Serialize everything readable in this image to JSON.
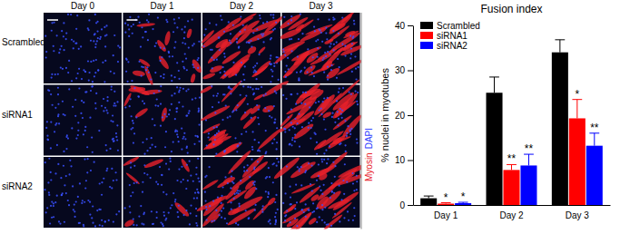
{
  "chart_data": {
    "type": "bar",
    "title": "Fusion index",
    "y_label": "% nuclei in myotubes",
    "categories": [
      "Day 1",
      "Day 2",
      "Day 3"
    ],
    "series": [
      {
        "name": "Scrambled",
        "color": "#000000",
        "values": [
          1.5,
          25,
          34
        ],
        "errors": [
          0.5,
          3.5,
          2.8
        ]
      },
      {
        "name": "siRNA1",
        "color": "#ff0000",
        "values": [
          0.3,
          7.8,
          19.3
        ],
        "errors": [
          0.2,
          1.2,
          4.2
        ],
        "significance": [
          "*",
          "**",
          "*"
        ]
      },
      {
        "name": "siRNA2",
        "color": "#0000ff",
        "values": [
          0.4,
          8.8,
          13.2
        ],
        "errors": [
          0.2,
          2.5,
          2.8
        ],
        "significance": [
          "*",
          "**",
          "**"
        ]
      }
    ],
    "ylim": [
      0,
      40
    ],
    "yticks": [
      0,
      10,
      20,
      30,
      40
    ],
    "grid": false,
    "legend": "upper left"
  },
  "figure_panel": {
    "columns": [
      "Day 0",
      "Day 1",
      "Day 2",
      "Day 3"
    ],
    "rows": [
      "Scrambled",
      "siRNA1",
      "siRNA2"
    ],
    "stains": [
      {
        "text": "Myosin",
        "color": "#e8202a"
      },
      {
        "text": "DAPI",
        "color": "#3040ff"
      }
    ]
  }
}
